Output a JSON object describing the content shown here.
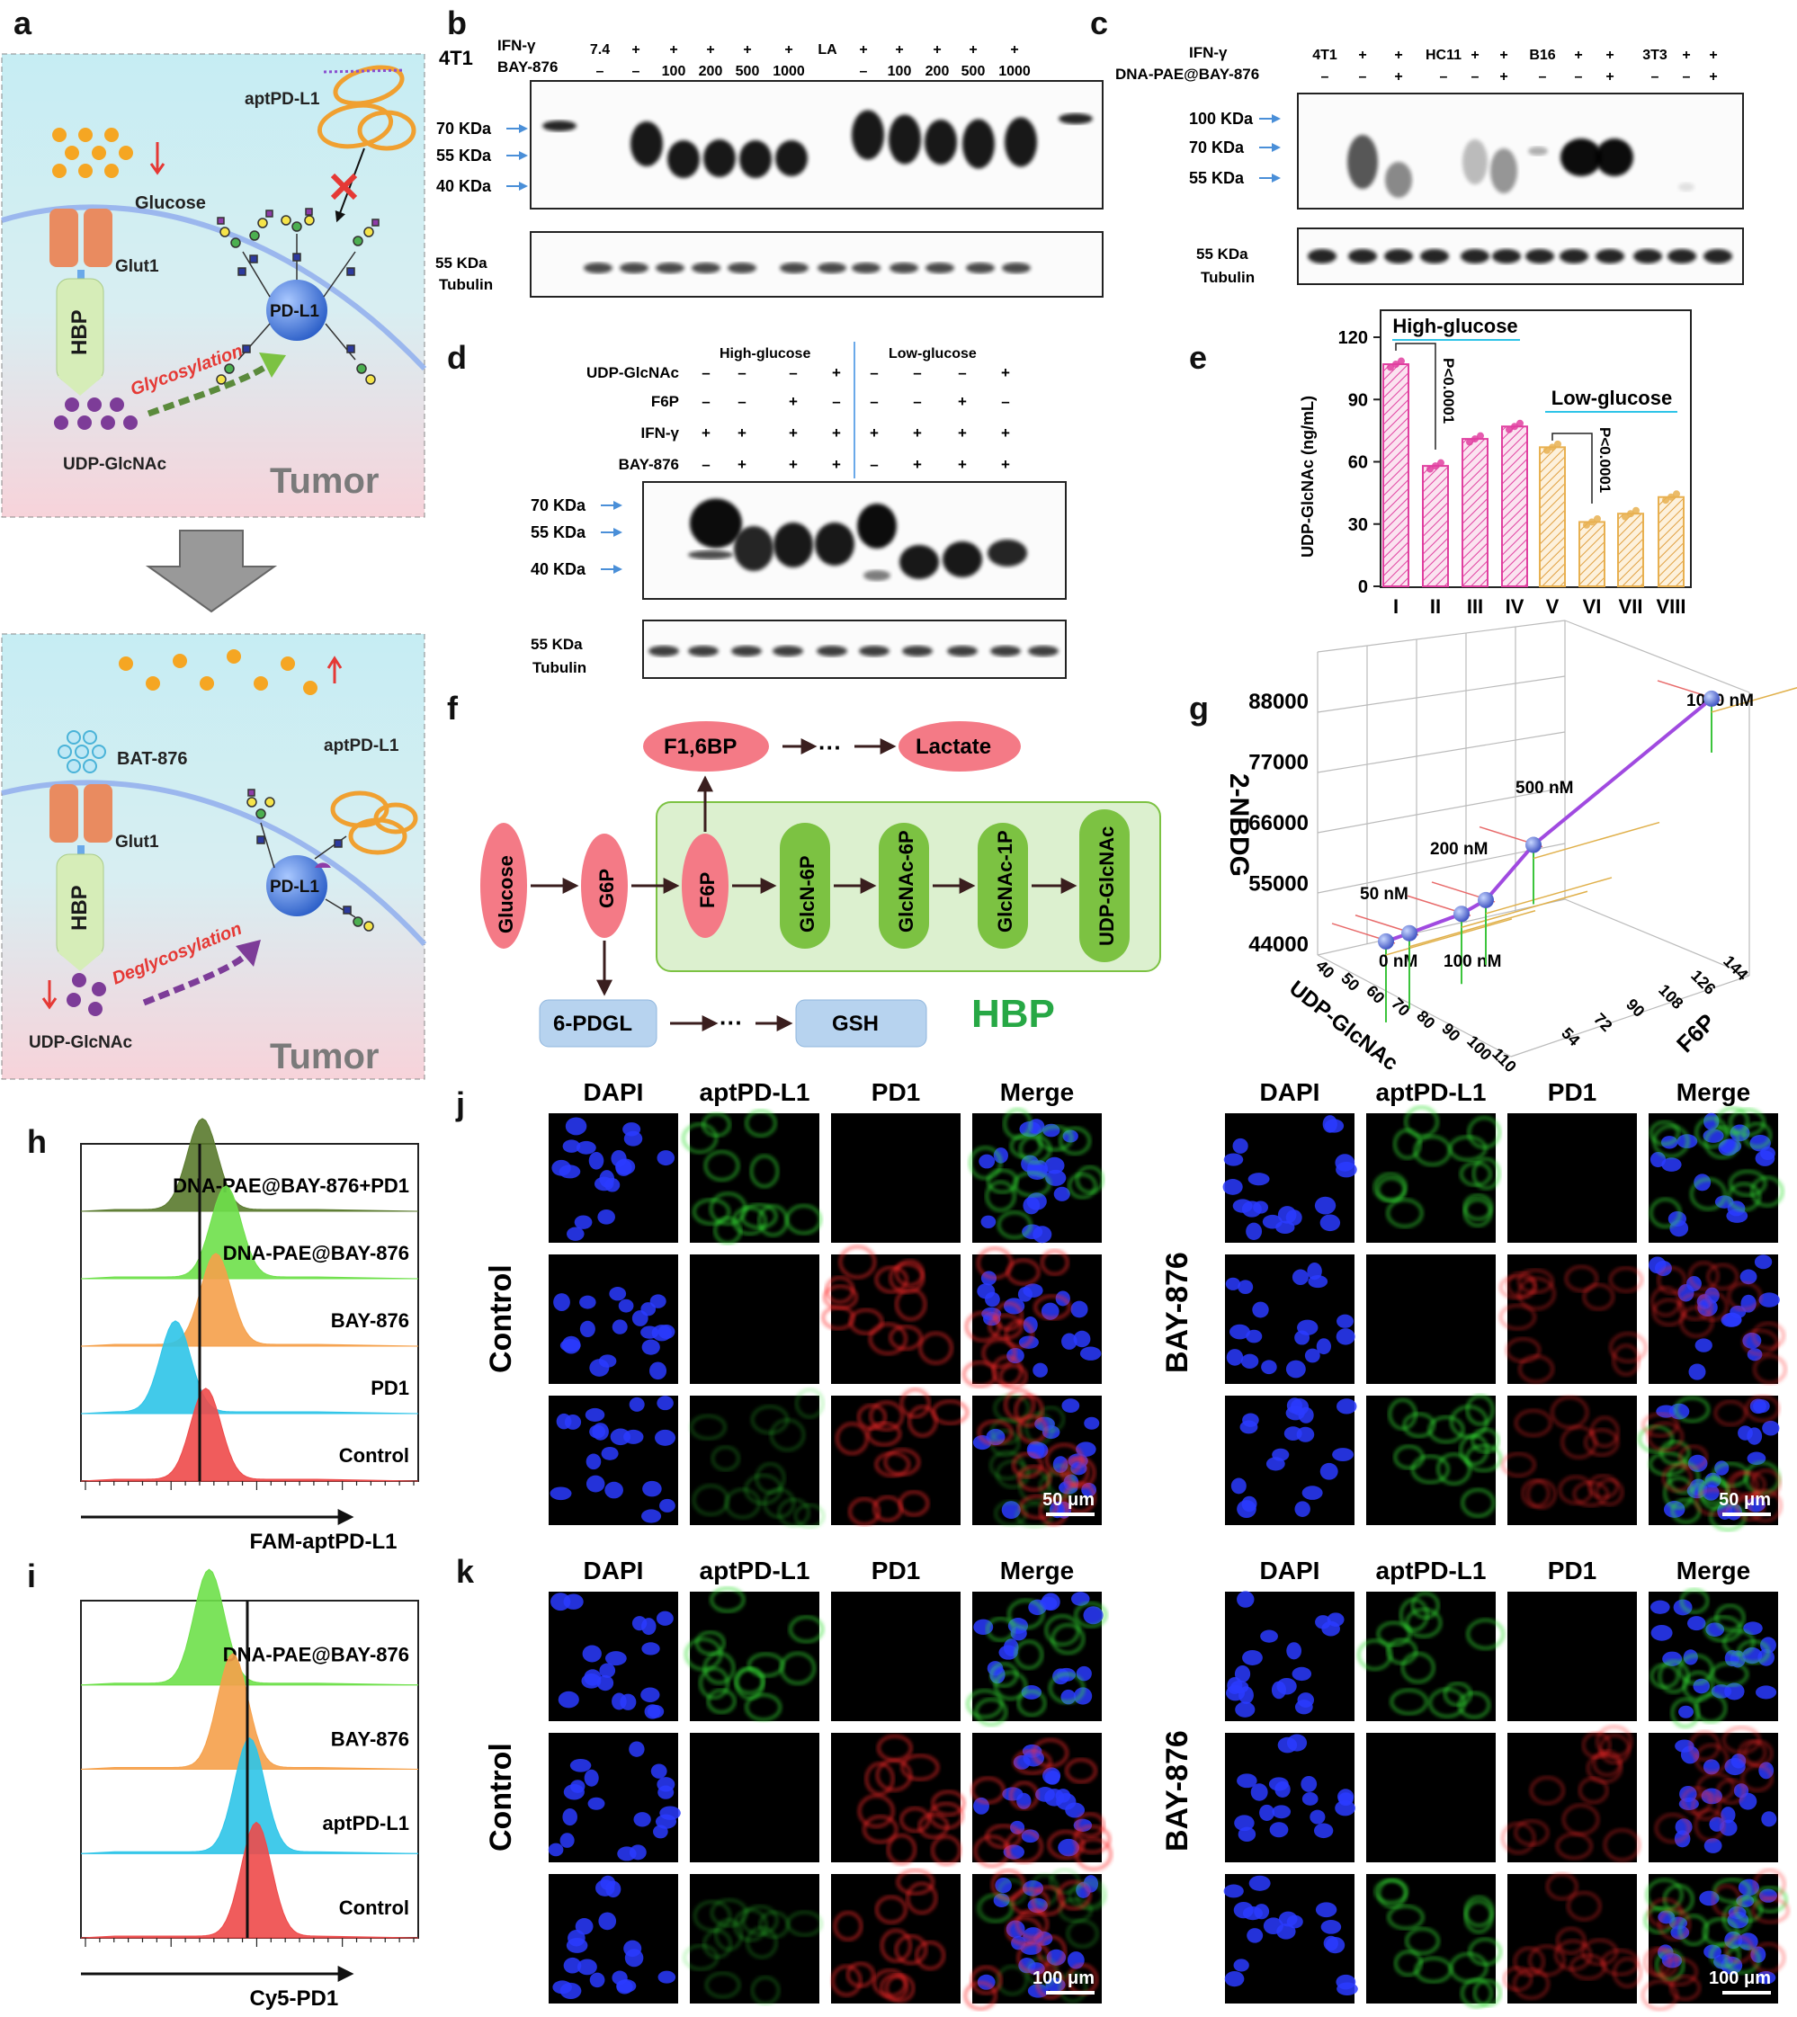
{
  "panel_letters": [
    "a",
    "b",
    "c",
    "d",
    "e",
    "f",
    "g",
    "h",
    "i",
    "j",
    "k"
  ],
  "a": {
    "tumor": "Tumor",
    "top": {
      "aptPDL1": "aptPD-L1",
      "glucose": "Glucose",
      "glut1": "Glut1",
      "hbp": "HBP",
      "pdl1": "PD-L1",
      "glyco": "Glycosylation",
      "udp": "UDP-GlcNAc"
    },
    "bottom": {
      "bat": "BAT-876",
      "aptPDL1": "aptPD-L1",
      "glut1": "Glut1",
      "hbp": "HBP",
      "pdl1": "PD-L1",
      "deglyco": "Deglycosylation",
      "udp": "UDP-GlcNAc"
    },
    "colors": {
      "top_bg": "#c8ecf2",
      "bottom_pink": "#f7d3d9",
      "glucose": "#f5a623",
      "udp": "#7d3c98",
      "pdl1": "#3f7fd8",
      "hbp": "#d6edb8",
      "arrow_red": "#e53935"
    }
  },
  "b": {
    "cell": "4T1",
    "rows": [
      "IFN-γ",
      "BAY-876"
    ],
    "lanes": [
      {
        "ifn": "7.4",
        "bay": "–"
      },
      {
        "ifn": "+",
        "bay": "–"
      },
      {
        "ifn": "+",
        "bay": "100"
      },
      {
        "ifn": "+",
        "bay": "200"
      },
      {
        "ifn": "+",
        "bay": "500"
      },
      {
        "ifn": "+",
        "bay": "1000"
      },
      {
        "ifn": "LA",
        "bay": ""
      },
      {
        "ifn": "+",
        "bay": "–"
      },
      {
        "ifn": "+",
        "bay": "100"
      },
      {
        "ifn": "+",
        "bay": "200"
      },
      {
        "ifn": "+",
        "bay": "500"
      },
      {
        "ifn": "+",
        "bay": "1000"
      }
    ],
    "markers": [
      "70 KDa",
      "55 KDa",
      "40 KDa"
    ],
    "tub_marker": "55 KDa",
    "tub_label": "Tubulin"
  },
  "c": {
    "rows": [
      "IFN-γ",
      "DNA-PAE@BAY-876"
    ],
    "groups": [
      {
        "name": "4T1",
        "ifn": [
          "+",
          "+"
        ],
        "dna": [
          "–",
          "+"
        ]
      },
      {
        "name": "HC11",
        "ifn": [
          "+",
          "+"
        ],
        "dna": [
          "–",
          "+"
        ]
      },
      {
        "name": "B16",
        "ifn": [
          "+",
          "+"
        ],
        "dna": [
          "–",
          "+"
        ]
      },
      {
        "name": "3T3",
        "ifn": [
          "+",
          "+"
        ],
        "dna": [
          "–",
          "+"
        ]
      }
    ],
    "dash": "–",
    "markers": [
      "100 KDa",
      "70 KDa",
      "55 KDa"
    ],
    "tub_marker": "55 KDa",
    "tub_label": "Tubulin"
  },
  "d": {
    "conditions": [
      "High-glucose",
      "Low-glucose"
    ],
    "rows": [
      {
        "label": "UDP-GlcNAc",
        "vals": [
          "–",
          "–",
          "–",
          "+",
          "–",
          "–",
          "–",
          "+"
        ]
      },
      {
        "label": "F6P",
        "vals": [
          "–",
          "–",
          "+",
          "–",
          "–",
          "–",
          "+",
          "–"
        ]
      },
      {
        "label": "IFN-γ",
        "vals": [
          "+",
          "+",
          "+",
          "+",
          "+",
          "+",
          "+",
          "+"
        ]
      },
      {
        "label": "BAY-876",
        "vals": [
          "–",
          "+",
          "+",
          "+",
          "–",
          "+",
          "+",
          "+"
        ]
      }
    ],
    "markers": [
      "70 KDa",
      "55 KDa",
      "40 KDa"
    ],
    "tub_marker": "55 KDa",
    "tub_label": "Tubulin"
  },
  "chart_data": [
    {
      "type": "bar",
      "panel": "e",
      "ylabel": "UDP-GlcNAc (ng/mL)",
      "ylim": [
        0,
        120
      ],
      "yticks": [
        0,
        30,
        60,
        90,
        120
      ],
      "categories": [
        "I",
        "II",
        "III",
        "IV",
        "V",
        "VI",
        "VII",
        "VIII"
      ],
      "values": [
        107,
        58,
        71,
        77,
        67,
        31,
        35,
        43
      ],
      "colors": [
        "#e040a0",
        "#e040a0",
        "#e040a0",
        "#e040a0",
        "#e8b050",
        "#e8b050",
        "#e8b050",
        "#e8b050"
      ],
      "groups": [
        {
          "label": "High-glucose",
          "range": [
            "I",
            "IV"
          ]
        },
        {
          "label": "Low-glucose",
          "range": [
            "V",
            "VIII"
          ]
        }
      ],
      "annotations": [
        {
          "text": "P<0.0001",
          "between": [
            "I",
            "II"
          ]
        },
        {
          "text": "P<0.0001",
          "between": [
            "V",
            "VI"
          ]
        }
      ]
    },
    {
      "type": "line3d",
      "panel": "g",
      "zlabel": "2-NBDG",
      "xlabel": "F6P",
      "ylabel": "UDP-GlcNAc",
      "zticks": [
        44000,
        55000,
        66000,
        77000,
        88000
      ],
      "xticks": [
        54,
        72,
        90,
        108,
        126,
        144
      ],
      "yticks": [
        40,
        50,
        60,
        70,
        80,
        90,
        100,
        110
      ],
      "points": [
        {
          "label": "0 nM",
          "z": 44500
        },
        {
          "label": "50 nM",
          "z": 46000
        },
        {
          "label": "100 nM",
          "z": 49500
        },
        {
          "label": "200 nM",
          "z": 52000
        },
        {
          "label": "500 nM",
          "z": 62000
        },
        {
          "label": "1000 nM",
          "z": 88500
        }
      ]
    },
    {
      "type": "histogram",
      "panel": "h",
      "xlabel": "FAM-aptPD-L1",
      "series": [
        {
          "name": "DNA-PAE@BAY-876+PD1",
          "color": "#5a7a2e",
          "peak": 0.36
        },
        {
          "name": "DNA-PAE@BAY-876",
          "color": "#6ee04a",
          "peak": 0.43
        },
        {
          "name": "BAY-876",
          "color": "#f5a04a",
          "peak": 0.4
        },
        {
          "name": "PD1",
          "color": "#2ec4e8",
          "peak": 0.28
        },
        {
          "name": "Control",
          "color": "#ee4a4a",
          "peak": 0.37
        }
      ]
    },
    {
      "type": "histogram",
      "panel": "i",
      "xlabel": "Cy5-PD1",
      "series": [
        {
          "name": "DNA-PAE@BAY-876",
          "color": "#6ee04a",
          "peak": 0.38
        },
        {
          "name": "BAY-876",
          "color": "#f5a04a",
          "peak": 0.45
        },
        {
          "name": "aptPD-L1",
          "color": "#2ec4e8",
          "peak": 0.5
        },
        {
          "name": "Control",
          "color": "#ee4a4a",
          "peak": 0.52
        }
      ]
    }
  ],
  "f": {
    "glucose": "Glucose",
    "g6p": "G6P",
    "f6p": "F6P",
    "f16bp": "F1,6BP",
    "lactate": "Lactate",
    "dots": "···",
    "glcn6p": "GlcN-6P",
    "glcnac6p": "GlcNAc-6P",
    "glcnac1p": "GlcNAc-1P",
    "udp": "UDP-GlcNAc",
    "pdgl": "6-PDGL",
    "gsh": "GSH",
    "hbp": "HBP"
  },
  "j": {
    "cols": [
      "DAPI",
      "aptPD-L1",
      "PD1",
      "Merge"
    ],
    "left": "Control",
    "right": "BAY-876",
    "scale": "50 μm"
  },
  "k": {
    "cols": [
      "DAPI",
      "aptPD-L1",
      "PD1",
      "Merge"
    ],
    "left": "Control",
    "right": "BAY-876",
    "scale": "100 μm"
  }
}
